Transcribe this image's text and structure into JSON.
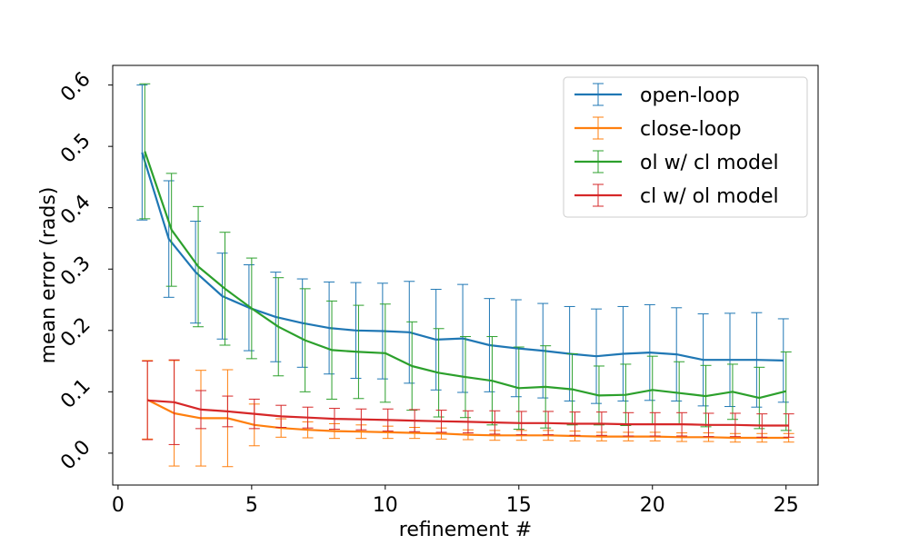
{
  "chart_data": {
    "type": "line",
    "title": "",
    "xlabel": "refinement #",
    "ylabel": "mean error (rads)",
    "xlim": [
      -0.2,
      26.2
    ],
    "ylim": [
      -0.052,
      0.632
    ],
    "xticks": [
      0,
      5,
      10,
      15,
      20,
      25
    ],
    "xtick_labels": [
      "0",
      "5",
      "10",
      "15",
      "20",
      "25"
    ],
    "yticks": [
      0.0,
      0.1,
      0.2,
      0.3,
      0.4,
      0.5,
      0.6
    ],
    "ytick_labels": [
      "0.0",
      "0.1",
      "0.2",
      "0.3",
      "0.4",
      "0.5",
      "0.6"
    ],
    "grid": false,
    "legend_position": "top-right",
    "series": [
      {
        "name": "open-loop",
        "color": "#1f77b4",
        "x_offset": -0.1,
        "x": [
          1,
          2,
          3,
          4,
          5,
          6,
          7,
          8,
          9,
          10,
          11,
          12,
          13,
          14,
          15,
          16,
          17,
          18,
          19,
          20,
          21,
          22,
          23,
          24,
          25
        ],
        "values": [
          0.49,
          0.349,
          0.295,
          0.256,
          0.237,
          0.222,
          0.212,
          0.204,
          0.2,
          0.199,
          0.197,
          0.185,
          0.187,
          0.176,
          0.171,
          0.167,
          0.162,
          0.158,
          0.162,
          0.164,
          0.161,
          0.152,
          0.152,
          0.152,
          0.151
        ],
        "errors": [
          0.11,
          0.095,
          0.083,
          0.07,
          0.07,
          0.073,
          0.072,
          0.075,
          0.078,
          0.078,
          0.083,
          0.082,
          0.088,
          0.076,
          0.079,
          0.077,
          0.077,
          0.077,
          0.077,
          0.078,
          0.076,
          0.075,
          0.076,
          0.077,
          0.068
        ]
      },
      {
        "name": "close-loop",
        "color": "#ff7f0e",
        "x_offset": 0.1,
        "x": [
          1,
          2,
          3,
          4,
          5,
          6,
          7,
          8,
          9,
          10,
          11,
          12,
          13,
          14,
          15,
          16,
          17,
          18,
          19,
          20,
          21,
          22,
          23,
          24,
          25
        ],
        "values": [
          0.087,
          0.065,
          0.057,
          0.057,
          0.046,
          0.041,
          0.038,
          0.036,
          0.035,
          0.034,
          0.033,
          0.032,
          0.03,
          0.029,
          0.029,
          0.029,
          0.028,
          0.027,
          0.027,
          0.027,
          0.026,
          0.026,
          0.025,
          0.025,
          0.025
        ],
        "errors": [
          0.064,
          0.086,
          0.078,
          0.079,
          0.034,
          0.015,
          0.013,
          0.012,
          0.011,
          0.01,
          0.009,
          0.009,
          0.008,
          0.008,
          0.008,
          0.008,
          0.008,
          0.007,
          0.007,
          0.007,
          0.007,
          0.007,
          0.007,
          0.007,
          0.007
        ]
      },
      {
        "name": "ol w/ cl model",
        "color": "#2ca02c",
        "x_offset": 0.0,
        "x": [
          1,
          2,
          3,
          4,
          5,
          6,
          7,
          8,
          9,
          10,
          11,
          12,
          13,
          14,
          15,
          16,
          17,
          18,
          19,
          20,
          21,
          22,
          23,
          24,
          25
        ],
        "values": [
          0.492,
          0.364,
          0.304,
          0.268,
          0.236,
          0.206,
          0.184,
          0.168,
          0.165,
          0.163,
          0.142,
          0.131,
          0.124,
          0.118,
          0.106,
          0.108,
          0.104,
          0.094,
          0.095,
          0.103,
          0.098,
          0.093,
          0.1,
          0.09,
          0.101
        ],
        "errors": [
          0.11,
          0.092,
          0.098,
          0.092,
          0.082,
          0.08,
          0.084,
          0.08,
          0.076,
          0.08,
          0.072,
          0.072,
          0.066,
          0.072,
          0.067,
          0.067,
          0.058,
          0.048,
          0.05,
          0.055,
          0.051,
          0.05,
          0.045,
          0.05,
          0.064
        ]
      },
      {
        "name": "cl w/ ol model",
        "color": "#d62728",
        "x_offset": 0.1,
        "x": [
          1,
          2,
          3,
          4,
          5,
          6,
          7,
          8,
          9,
          10,
          11,
          12,
          13,
          14,
          15,
          16,
          17,
          18,
          19,
          20,
          21,
          22,
          23,
          24,
          25
        ],
        "values": [
          0.086,
          0.083,
          0.071,
          0.068,
          0.064,
          0.06,
          0.058,
          0.056,
          0.055,
          0.054,
          0.053,
          0.052,
          0.051,
          0.05,
          0.049,
          0.049,
          0.048,
          0.048,
          0.047,
          0.047,
          0.047,
          0.046,
          0.046,
          0.045,
          0.045
        ],
        "errors": [
          0.064,
          0.069,
          0.031,
          0.025,
          0.024,
          0.018,
          0.017,
          0.017,
          0.017,
          0.018,
          0.018,
          0.018,
          0.018,
          0.019,
          0.019,
          0.019,
          0.019,
          0.019,
          0.019,
          0.019,
          0.019,
          0.019,
          0.019,
          0.019,
          0.019
        ]
      }
    ]
  }
}
